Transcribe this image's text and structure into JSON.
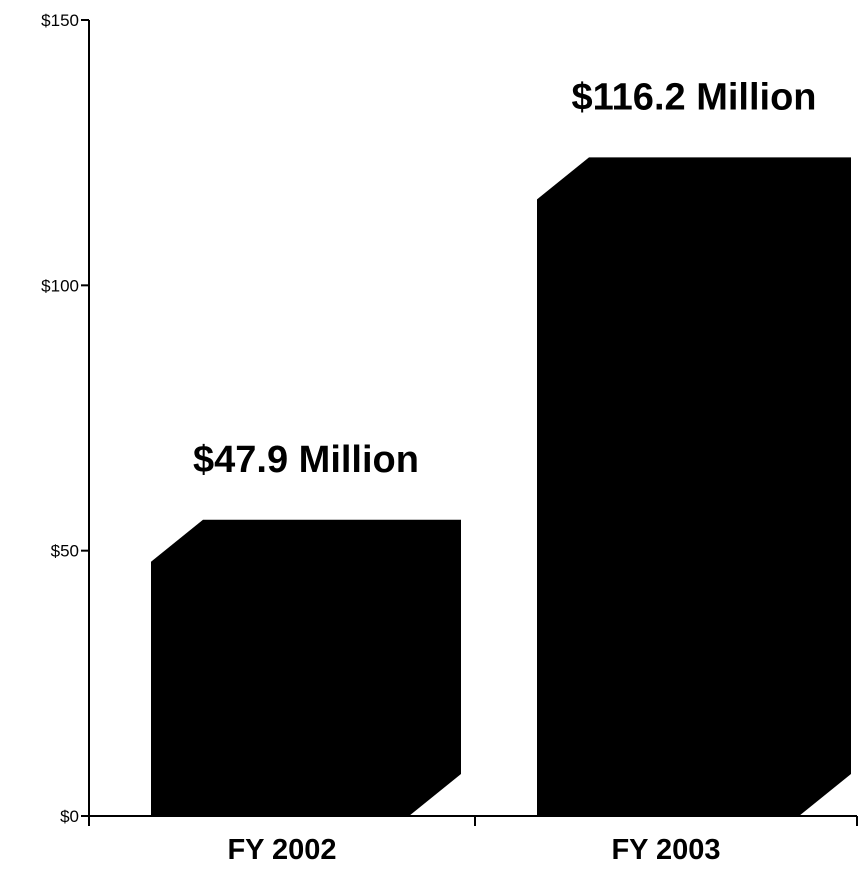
{
  "chart_data": {
    "type": "bar",
    "title": "",
    "xlabel": "",
    "ylabel": "",
    "categories": [
      "FY 2002",
      "FY 2003"
    ],
    "values": [
      47.9,
      116.2
    ],
    "data_labels": [
      "$47.9 Million",
      "$116.2 Million"
    ],
    "y_ticks": [
      0,
      50,
      100,
      150
    ],
    "y_tick_labels": [
      "$0",
      "$50",
      "$100",
      "$150"
    ],
    "ylim": [
      0,
      150
    ],
    "grid": false,
    "legend": "none",
    "bar_style": "3d",
    "colors": {
      "bar": "#000000",
      "axis": "#000000",
      "background": "#ffffff"
    }
  }
}
